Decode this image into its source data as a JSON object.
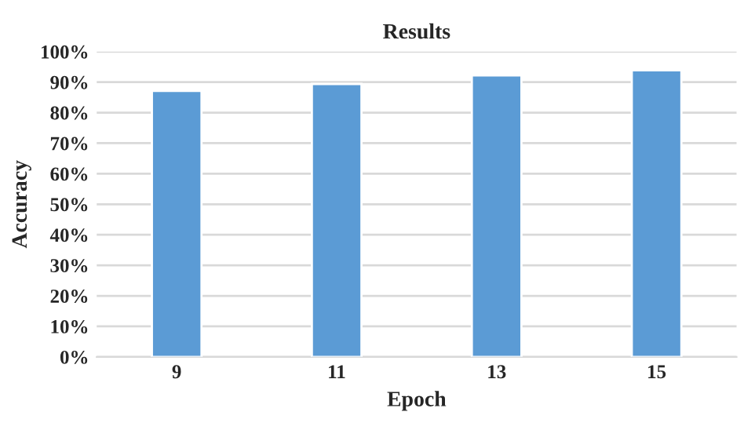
{
  "chart_data": {
    "type": "bar",
    "title": "Results",
    "xlabel": "Epoch",
    "ylabel": "Accuracy",
    "categories": [
      "9",
      "11",
      "13",
      "15"
    ],
    "values": [
      87.1,
      89.4,
      92.2,
      93.9
    ],
    "color": "#5b9bd5",
    "ylim": [
      0,
      100
    ],
    "yticks": [
      {
        "value": 0,
        "label": "0%"
      },
      {
        "value": 10,
        "label": "10%"
      },
      {
        "value": 20,
        "label": "20%"
      },
      {
        "value": 30,
        "label": "30%"
      },
      {
        "value": 40,
        "label": "40%"
      },
      {
        "value": 50,
        "label": "50%"
      },
      {
        "value": 60,
        "label": "60%"
      },
      {
        "value": 70,
        "label": "70%"
      },
      {
        "value": 80,
        "label": "80%"
      },
      {
        "value": 90,
        "label": "90%"
      },
      {
        "value": 100,
        "label": "100%"
      }
    ],
    "grid": "y",
    "legend": false
  }
}
